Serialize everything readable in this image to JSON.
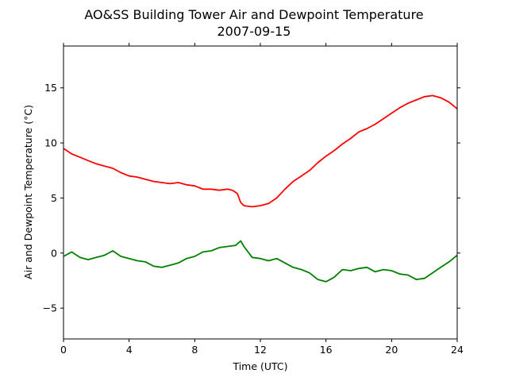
{
  "chart_data": {
    "type": "line",
    "title": "AO&SS Building Tower Air and Dewpoint Temperature",
    "subtitle": "2007-09-15",
    "xlabel": "Time (UTC)",
    "ylabel": "Air and Dewpoint Temperature (°C)",
    "xlim": [
      0,
      24
    ],
    "ylim": [
      -7.8,
      18.8
    ],
    "xticks": [
      0,
      4,
      8,
      12,
      16,
      20,
      24
    ],
    "yticks": [
      -5,
      0,
      5,
      10,
      15
    ],
    "grid": false,
    "legend": "none",
    "series": [
      {
        "color": "#ff0000",
        "x": [
          0,
          0.5,
          1,
          1.5,
          2,
          2.5,
          3,
          3.5,
          4,
          4.5,
          5,
          5.5,
          6,
          6.5,
          7,
          7.5,
          8,
          8.5,
          9,
          9.5,
          10,
          10.3,
          10.6,
          10.8,
          11,
          11.5,
          12,
          12.5,
          13,
          13.5,
          14,
          14.5,
          15,
          15.5,
          16,
          16.5,
          17,
          17.5,
          18,
          18.5,
          19,
          19.5,
          20,
          20.5,
          21,
          21.5,
          22,
          22.5,
          23,
          23.5,
          24
        ],
        "values": [
          9.5,
          9.0,
          8.7,
          8.4,
          8.1,
          7.9,
          7.7,
          7.3,
          7.0,
          6.9,
          6.7,
          6.5,
          6.4,
          6.3,
          6.4,
          6.2,
          6.1,
          5.8,
          5.8,
          5.7,
          5.8,
          5.7,
          5.4,
          4.6,
          4.3,
          4.2,
          4.3,
          4.5,
          5.0,
          5.8,
          6.5,
          7.0,
          7.5,
          8.2,
          8.8,
          9.3,
          9.9,
          10.4,
          11.0,
          11.3,
          11.7,
          12.2,
          12.7,
          13.2,
          13.6,
          13.9,
          14.2,
          14.3,
          14.1,
          13.7,
          13.1
        ]
      },
      {
        "color": "#008000",
        "x": [
          0,
          0.5,
          1,
          1.5,
          2,
          2.5,
          3,
          3.5,
          4,
          4.5,
          5,
          5.5,
          6,
          6.5,
          7,
          7.5,
          8,
          8.5,
          9,
          9.5,
          10,
          10.5,
          10.8,
          11,
          11.5,
          12,
          12.5,
          13,
          13.5,
          14,
          14.5,
          15,
          15.5,
          16,
          16.5,
          17,
          17.5,
          18,
          18.5,
          19,
          19.5,
          20,
          20.5,
          21,
          21.5,
          22,
          22.5,
          23,
          23.5,
          24
        ],
        "values": [
          -0.3,
          0.1,
          -0.4,
          -0.6,
          -0.4,
          -0.2,
          0.2,
          -0.3,
          -0.5,
          -0.7,
          -0.8,
          -1.2,
          -1.3,
          -1.1,
          -0.9,
          -0.5,
          -0.3,
          0.1,
          0.2,
          0.5,
          0.6,
          0.7,
          1.1,
          0.6,
          -0.4,
          -0.5,
          -0.7,
          -0.5,
          -0.9,
          -1.3,
          -1.5,
          -1.8,
          -2.4,
          -2.6,
          -2.2,
          -1.5,
          -1.6,
          -1.4,
          -1.3,
          -1.7,
          -1.5,
          -1.6,
          -1.9,
          -2.0,
          -2.4,
          -2.3,
          -1.8,
          -1.3,
          -0.8,
          -0.2
        ]
      }
    ]
  }
}
